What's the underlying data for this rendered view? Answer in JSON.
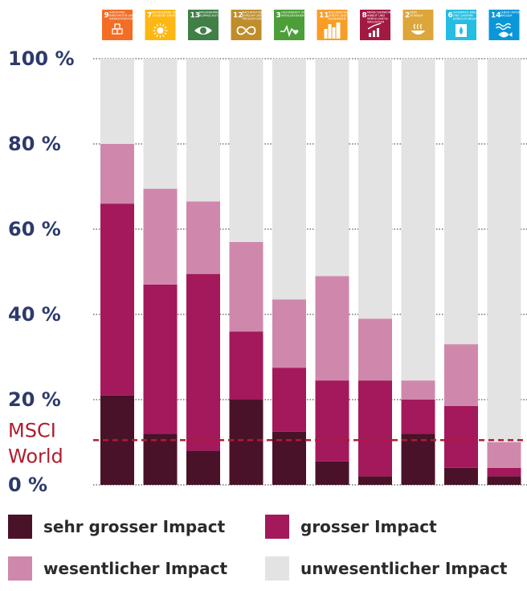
{
  "chart_data": {
    "type": "bar",
    "stacked": true,
    "ylim": [
      0,
      100
    ],
    "yticks": [
      {
        "value": 100,
        "label": "100 %"
      },
      {
        "value": 80,
        "label": "80 %"
      },
      {
        "value": 60,
        "label": "60 %"
      },
      {
        "value": 40,
        "label": "40 %"
      },
      {
        "value": 20,
        "label": "20 %"
      },
      {
        "value": 0,
        "label": "0 %"
      }
    ],
    "grid": true,
    "categories": [
      {
        "sdg": "9",
        "icon": "factory-cubes-icon",
        "color": "#f36d25",
        "caption": [
          "INDUSTRIE,",
          "INNOVATION UND",
          "INFRASTRUKTUR"
        ]
      },
      {
        "sdg": "7",
        "icon": "sun-icon",
        "color": "#fdb713",
        "caption": [
          "BEZAHLBARE UND",
          "SAUBERE ENERGIE"
        ]
      },
      {
        "sdg": "13",
        "icon": "eye-globe-icon",
        "color": "#407f46",
        "caption": [
          "MASSNAHMEN ZUM",
          "KLIMASCHUTZ"
        ]
      },
      {
        "sdg": "12",
        "icon": "infinity-icon",
        "color": "#bf8d2c",
        "caption": [
          "NACHHALTIGE/R",
          "KONSUM UND",
          "PRODUKTION"
        ]
      },
      {
        "sdg": "3",
        "icon": "heartbeat-icon",
        "color": "#4c9f38",
        "caption": [
          "GESUNDHEIT UND",
          "WOHLERGEHEN"
        ]
      },
      {
        "sdg": "11",
        "icon": "city-icon",
        "color": "#f99d26",
        "caption": [
          "NACHHALTIGE",
          "STÄDTE UND",
          "GEMEINDEN"
        ]
      },
      {
        "sdg": "8",
        "icon": "growth-chart-icon",
        "color": "#a21942",
        "caption": [
          "MENSCHENWÜRDIGE",
          "ARBEIT UND",
          "WIRTSCHAFTS-",
          "WACHSTUM"
        ]
      },
      {
        "sdg": "2",
        "icon": "bowl-icon",
        "color": "#dda63a",
        "caption": [
          "KEIN",
          "HUNGER"
        ]
      },
      {
        "sdg": "6",
        "icon": "water-drop-icon",
        "color": "#26bde2",
        "caption": [
          "SAUBERES WASSER",
          "UND SANITÄR-",
          "EINRICHTUNGEN"
        ]
      },
      {
        "sdg": "14",
        "icon": "fish-icon",
        "color": "#0a97d9",
        "caption": [
          "LEBEN UNTER",
          "WASSER"
        ]
      }
    ],
    "series": [
      {
        "name": "sehr grosser Impact",
        "color": "#4a1229",
        "values": [
          21,
          12,
          8,
          20,
          12.5,
          5.5,
          2,
          12,
          4,
          2
        ]
      },
      {
        "name": "grosser Impact",
        "color": "#a3195b",
        "values": [
          45,
          35,
          41.5,
          16,
          15,
          19,
          22.5,
          8,
          14.5,
          2
        ]
      },
      {
        "name": "wesentlicher Impact",
        "color": "#cf88ab",
        "values": [
          14,
          22.5,
          17,
          21,
          16,
          24.5,
          14.5,
          4.5,
          14.5,
          6
        ]
      },
      {
        "name": "unwesentlicher Impact",
        "color": "#e3e3e3",
        "values": [
          20,
          30.5,
          33.5,
          43,
          56.5,
          51,
          61,
          75.5,
          67,
          90
        ]
      }
    ],
    "reference_line": {
      "label_lines": [
        "MSCI",
        "World"
      ],
      "value": 10.5,
      "color": "#b01c2e"
    }
  },
  "legend": [
    {
      "label": "sehr grosser Impact",
      "color": "#4a1229"
    },
    {
      "label": "grosser Impact",
      "color": "#a3195b"
    },
    {
      "label": "wesentlicher Impact",
      "color": "#cf88ab"
    },
    {
      "label": "unwesentlicher Impact",
      "color": "#e3e3e3"
    }
  ]
}
